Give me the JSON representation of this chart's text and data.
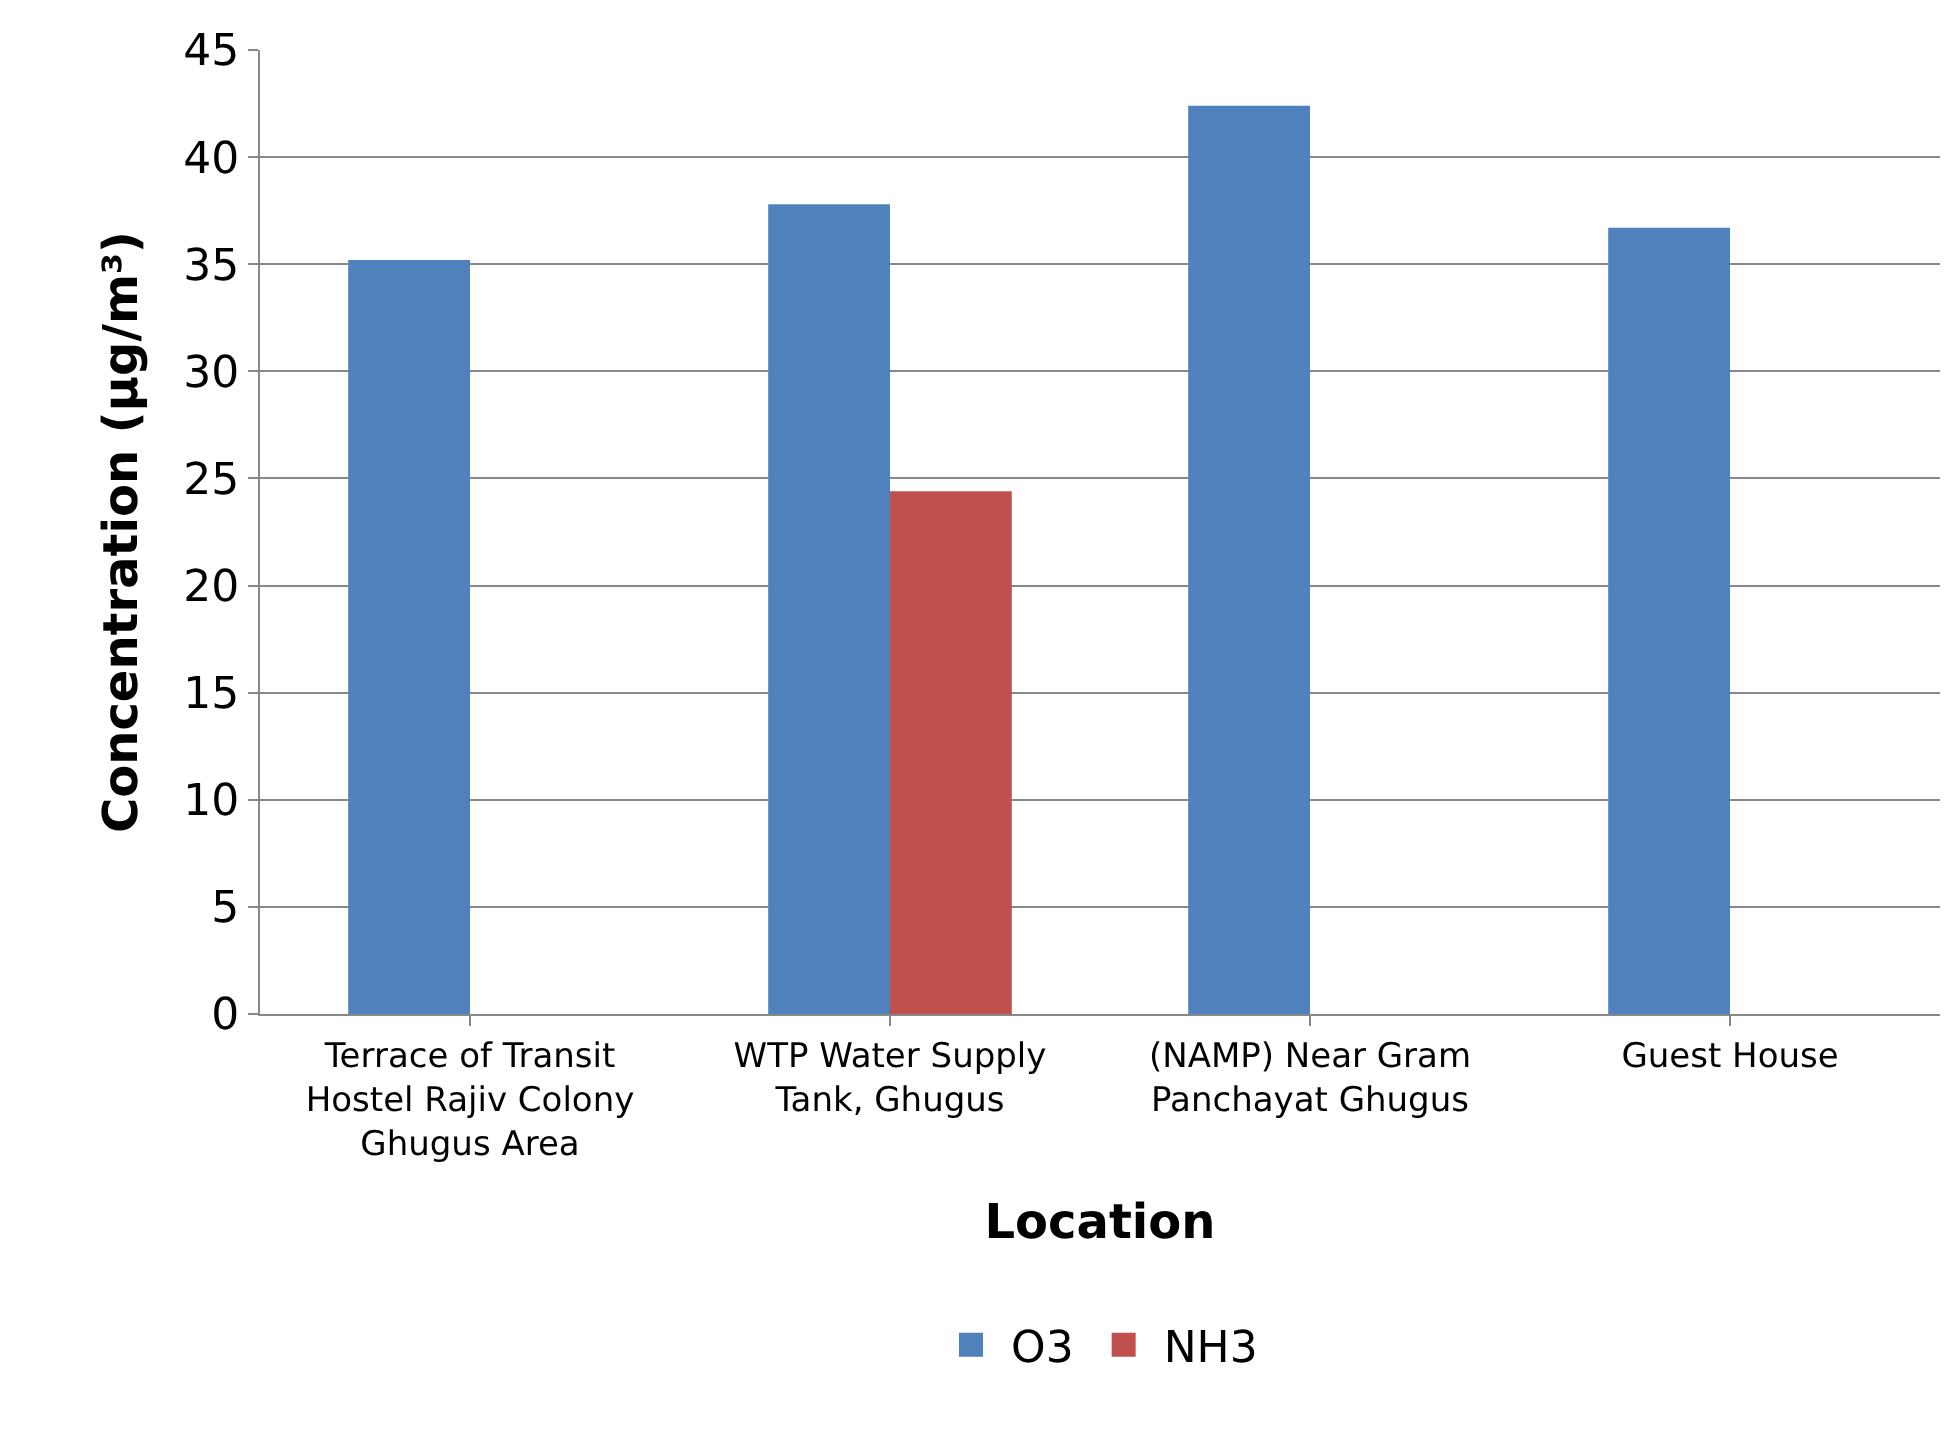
{
  "chart_data": {
    "type": "bar",
    "xlabel": "Location",
    "ylabel": "Concentration (µg/m³)",
    "categories": [
      "Terrace of Transit Hostel Rajiv Colony Ghugus Area",
      "WTP Water Supply Tank, Ghugus",
      "(NAMP) Near Gram Panchayat Ghugus",
      "Guest House"
    ],
    "series": [
      {
        "name": "O3",
        "color": "#4f81bd",
        "values": [
          35.2,
          37.8,
          42.4,
          36.7
        ]
      },
      {
        "name": "NH3",
        "color": "#c0504d",
        "values": [
          null,
          24.4,
          null,
          null
        ]
      }
    ],
    "ylim": [
      0,
      45
    ],
    "yticks": [
      0,
      5,
      10,
      15,
      20,
      25,
      30,
      35,
      40,
      45
    ],
    "grid": "y",
    "legend": "bottom"
  }
}
